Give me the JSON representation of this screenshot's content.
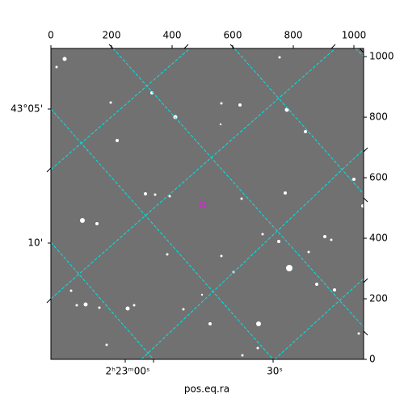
{
  "chart_data": {
    "type": "image",
    "xlabel": "pos.eq.ra",
    "xlim": [
      0,
      1032
    ],
    "xticks": [
      0,
      200,
      400,
      600,
      800,
      1000
    ],
    "ylim": [
      0,
      1027
    ],
    "yticks": [
      0,
      200,
      400,
      600,
      800,
      1000
    ],
    "ra_ticks": [
      "2ʰ23ᵐ00ˢ",
      "30ˢ"
    ],
    "dec_ticks": [
      "43°05'",
      "10'"
    ],
    "grid_color": "#00e5e5",
    "marker_color": "#e020e0"
  }
}
